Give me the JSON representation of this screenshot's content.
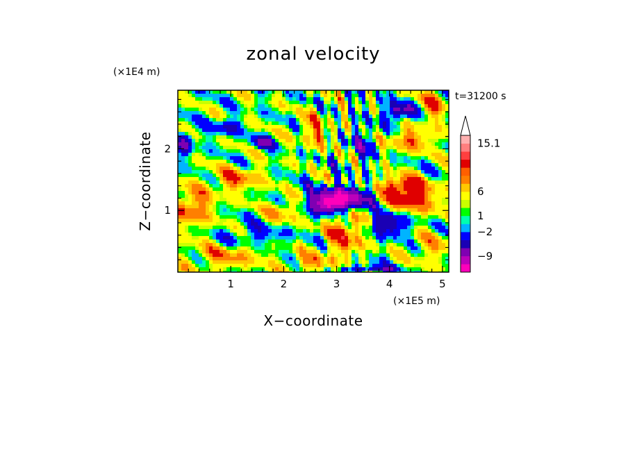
{
  "chart_data": {
    "type": "heatmap",
    "title": "zonal velocity",
    "xlabel": "X−coordinate",
    "ylabel": "Z−coordinate",
    "x_multiplier_label": "(×1E5 m)",
    "y_multiplier_label": "(×1E4 m)",
    "time_label": "t=31200 s",
    "xlim": [
      0,
      5.12
    ],
    "ylim": [
      0,
      2.95
    ],
    "x_ticks": [
      "1",
      "2",
      "3",
      "4",
      "5"
    ],
    "y_ticks": [
      "1",
      "2"
    ],
    "colorbar": {
      "colors": [
        "#ff00bb",
        "#bb00bb",
        "#7f00b2",
        "#1a00b4",
        "#0000ff",
        "#00b4ff",
        "#00ffb0",
        "#00ff00",
        "#c8ff00",
        "#ffff00",
        "#ffc800",
        "#ff7f00",
        "#ff5f00",
        "#e00000",
        "#ff3f3f",
        "#ff7f7f",
        "#ffb0b0",
        "#ffffff"
      ],
      "labels": [
        "15.1",
        "6",
        "1",
        "−2",
        "−9"
      ]
    },
    "features": [
      {
        "x": 3.1,
        "z": 1.2,
        "value": -12,
        "sx": 0.55,
        "sz": 0.17
      },
      {
        "x": 2.85,
        "z": 1.08,
        "value": -8,
        "sx": 0.35,
        "sz": 0.14
      },
      {
        "x": 4.0,
        "z": 0.78,
        "value": -7,
        "sx": 0.35,
        "sz": 0.18
      },
      {
        "x": 4.4,
        "z": 1.2,
        "value": 7,
        "sx": 0.55,
        "sz": 0.24
      },
      {
        "x": 4.2,
        "z": 1.4,
        "value": 6,
        "sx": 0.4,
        "sz": 0.15
      },
      {
        "x": 3.15,
        "z": 0.62,
        "value": 6,
        "sx": 0.35,
        "sz": 0.35
      },
      {
        "x": 0.25,
        "z": 1.05,
        "value": 6,
        "sx": 0.4,
        "sz": 0.3
      },
      {
        "x": 1.1,
        "z": 1.5,
        "value": 5,
        "sx": 0.45,
        "sz": 0.2
      },
      {
        "x": 0.9,
        "z": 0.25,
        "value": 4,
        "sx": 0.7,
        "sz": 0.2
      },
      {
        "x": 1.5,
        "z": 0.6,
        "value": -3,
        "sx": 0.6,
        "sz": 0.16
      },
      {
        "x": 2.5,
        "z": 0.15,
        "value": 4,
        "sx": 0.4,
        "sz": 0.15
      },
      {
        "x": 4.2,
        "z": 2.6,
        "value": -7,
        "sx": 0.3,
        "sz": 0.15
      },
      {
        "x": 4.4,
        "z": 2.15,
        "value": 5,
        "sx": 0.45,
        "sz": 0.18
      },
      {
        "x": 4.8,
        "z": 2.7,
        "value": 5,
        "sx": 0.25,
        "sz": 0.25
      },
      {
        "x": 1.6,
        "z": 2.1,
        "value": -6,
        "sx": 0.2,
        "sz": 0.1
      },
      {
        "x": 0.9,
        "z": 2.35,
        "value": -5,
        "sx": 0.25,
        "sz": 0.12
      },
      {
        "x": 0.15,
        "z": 2.1,
        "value": -6,
        "sx": 0.15,
        "sz": 0.2
      },
      {
        "x": 2.6,
        "z": 2.3,
        "value": 4,
        "sx": 0.3,
        "sz": 0.3
      },
      {
        "x": 3.5,
        "z": 2.1,
        "value": -4,
        "sx": 0.25,
        "sz": 0.25
      },
      {
        "x": 2.0,
        "z": 1.0,
        "value": 4,
        "sx": 0.3,
        "sz": 0.2
      },
      {
        "x": 4.8,
        "z": 0.4,
        "value": 3,
        "sx": 0.4,
        "sz": 0.25
      },
      {
        "x": 3.6,
        "z": 0.05,
        "value": -6,
        "sx": 0.5,
        "sz": 0.06
      }
    ]
  }
}
